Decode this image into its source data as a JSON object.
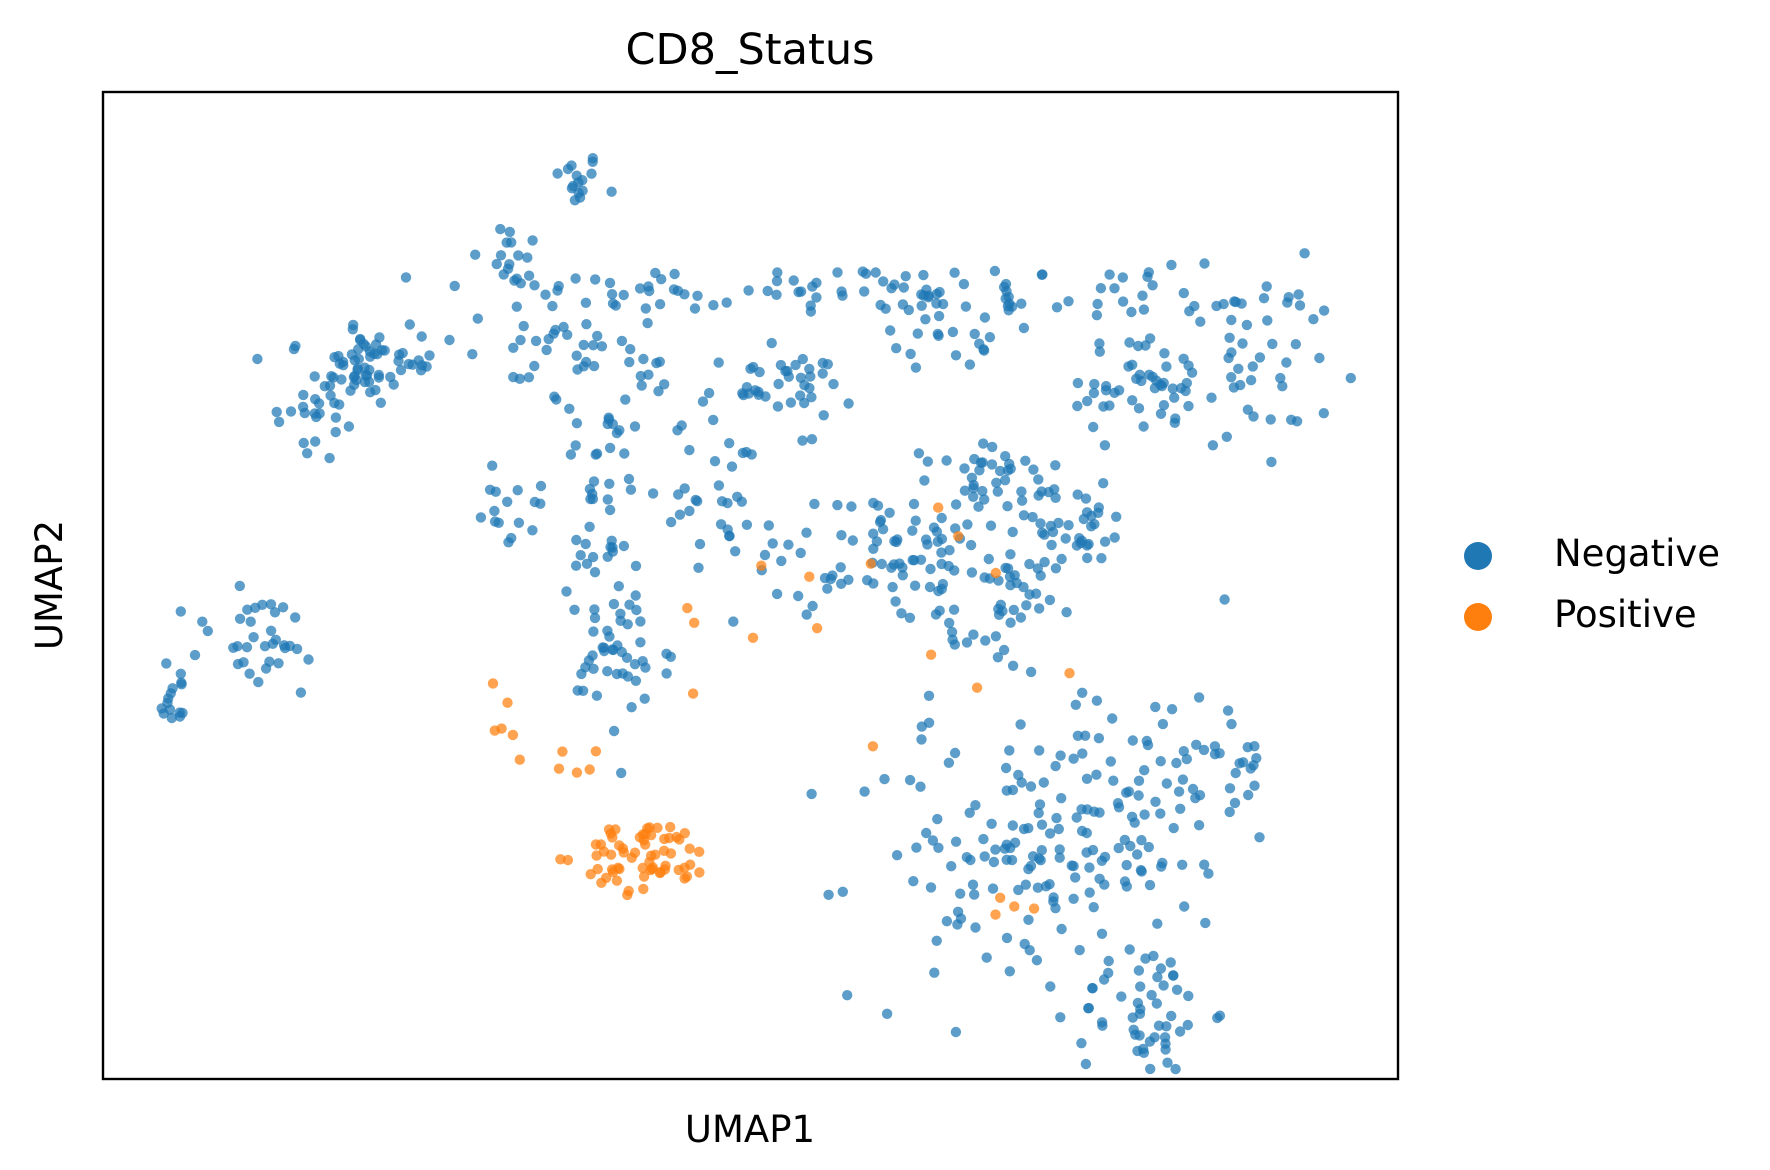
{
  "chart_data": {
    "type": "scatter",
    "title": "CD8_Status",
    "xlabel": "UMAP1",
    "ylabel": "UMAP2",
    "xlim": [
      0,
      100
    ],
    "ylim": [
      0,
      100
    ],
    "grid": false,
    "legend_position": "right",
    "series": [
      {
        "name": "Negative",
        "color": "#1f77b4",
        "clusters": [
          {
            "cx": 36.5,
            "cy": 91.0,
            "sx": 1.0,
            "sy": 1.5,
            "n": 16
          },
          {
            "cx": 31.5,
            "cy": 82.5,
            "sx": 1.5,
            "sy": 2.5,
            "n": 18
          },
          {
            "cx": 30.0,
            "cy": 74.0,
            "sx": 8.0,
            "sy": 1.8,
            "n": 40
          },
          {
            "cx": 20.0,
            "cy": 72.0,
            "sx": 2.0,
            "sy": 2.0,
            "n": 45
          },
          {
            "cx": 16.5,
            "cy": 67.0,
            "sx": 2.0,
            "sy": 3.0,
            "n": 22
          },
          {
            "cx": 53.0,
            "cy": 80.0,
            "sx": 12.0,
            "sy": 1.2,
            "n": 60
          },
          {
            "cx": 77.0,
            "cy": 79.0,
            "sx": 9.0,
            "sy": 1.5,
            "n": 45
          },
          {
            "cx": 88.0,
            "cy": 72.0,
            "sx": 3.5,
            "sy": 5.0,
            "n": 45
          },
          {
            "cx": 80.0,
            "cy": 70.0,
            "sx": 3.5,
            "sy": 2.5,
            "n": 40
          },
          {
            "cx": 65.0,
            "cy": 77.0,
            "sx": 2.0,
            "sy": 2.5,
            "n": 25
          },
          {
            "cx": 52.0,
            "cy": 70.0,
            "sx": 3.0,
            "sy": 1.8,
            "n": 40
          },
          {
            "cx": 39.0,
            "cy": 62.0,
            "sx": 2.5,
            "sy": 9.0,
            "n": 80
          },
          {
            "cx": 40.0,
            "cy": 42.0,
            "sx": 2.0,
            "sy": 4.0,
            "n": 40
          },
          {
            "cx": 48.0,
            "cy": 60.0,
            "sx": 2.0,
            "sy": 3.5,
            "n": 30
          },
          {
            "cx": 57.0,
            "cy": 52.0,
            "sx": 4.0,
            "sy": 3.0,
            "n": 40
          },
          {
            "cx": 65.0,
            "cy": 55.0,
            "sx": 3.5,
            "sy": 5.0,
            "n": 60
          },
          {
            "cx": 69.5,
            "cy": 47.0,
            "sx": 2.0,
            "sy": 3.0,
            "n": 35
          },
          {
            "cx": 69.0,
            "cy": 60.0,
            "sx": 2.5,
            "sy": 3.0,
            "n": 30
          },
          {
            "cx": 75.0,
            "cy": 56.0,
            "sx": 3.0,
            "sy": 2.0,
            "n": 35
          },
          {
            "cx": 70.0,
            "cy": 22.0,
            "sx": 6.0,
            "sy": 7.0,
            "n": 120
          },
          {
            "cx": 80.0,
            "cy": 28.0,
            "sx": 4.0,
            "sy": 6.0,
            "n": 60
          },
          {
            "cx": 80.5,
            "cy": 7.0,
            "sx": 2.5,
            "sy": 3.5,
            "n": 50
          },
          {
            "cx": 85.0,
            "cy": 32.0,
            "sx": 3.0,
            "sy": 4.0,
            "n": 30
          },
          {
            "cx": 31.0,
            "cy": 58.0,
            "sx": 0.8,
            "sy": 2.0,
            "n": 12
          },
          {
            "cx": 12.0,
            "cy": 44.0,
            "sx": 3.0,
            "sy": 3.0,
            "n": 35
          },
          {
            "cx": 5.5,
            "cy": 39.0,
            "sx": 1.0,
            "sy": 1.5,
            "n": 15
          }
        ]
      },
      {
        "name": "Positive",
        "color": "#ff7f0e",
        "clusters": [
          {
            "cx": 42.0,
            "cy": 22.5,
            "sx": 2.5,
            "sy": 1.8,
            "n": 65
          },
          {
            "cx": 36.5,
            "cy": 32.0,
            "sx": 3.0,
            "sy": 1.0,
            "n": 6
          },
          {
            "cx": 30.0,
            "cy": 38.0,
            "sx": 2.0,
            "sy": 2.0,
            "n": 5
          },
          {
            "cx": 70.0,
            "cy": 18.0,
            "sx": 2.0,
            "sy": 1.5,
            "n": 4
          },
          {
            "cx": 60.0,
            "cy": 50.0,
            "sx": 9.0,
            "sy": 8.0,
            "n": 15
          }
        ]
      }
    ]
  }
}
